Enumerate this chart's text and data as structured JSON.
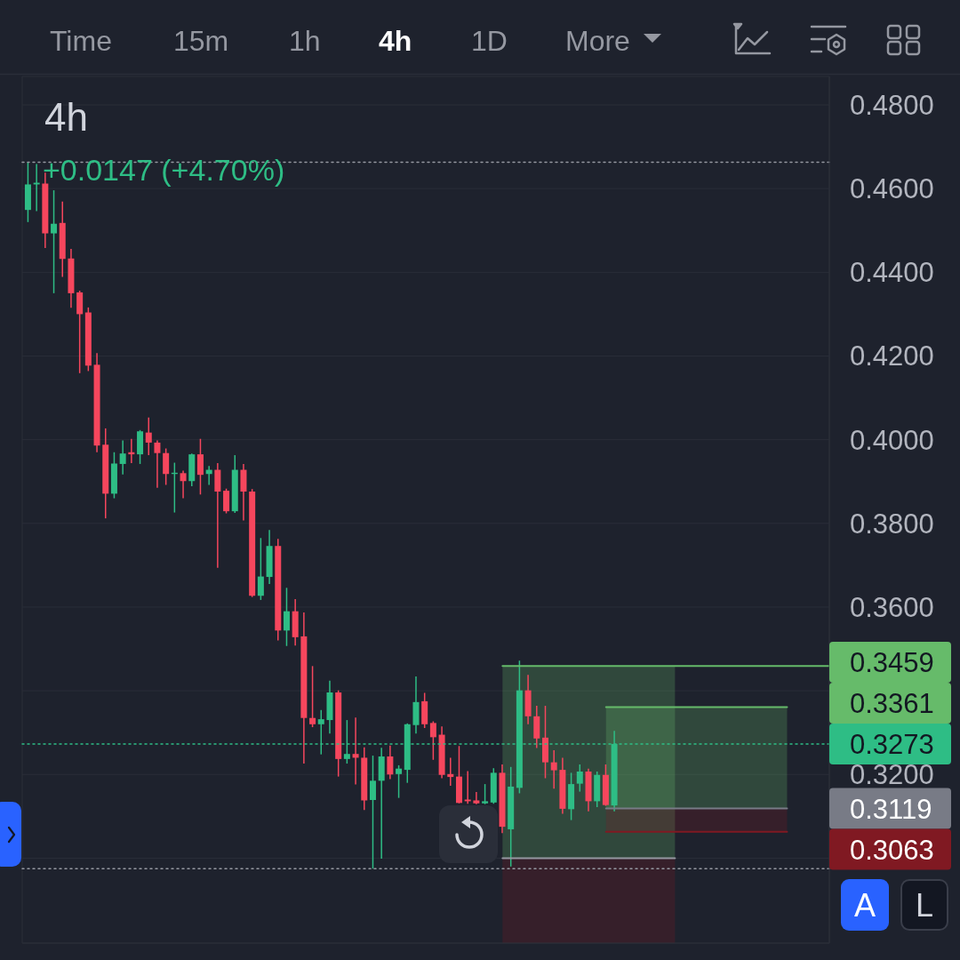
{
  "chart_data": {
    "type": "candlestick",
    "title": "4h",
    "categories": [
      null,
      null,
      null,
      null,
      null,
      null,
      null,
      null,
      null,
      null,
      null,
      null,
      null,
      null,
      null,
      null,
      null,
      null,
      null,
      null,
      null,
      null,
      null,
      null,
      null,
      null,
      null,
      null,
      null,
      null,
      null,
      null,
      null,
      null,
      null,
      null,
      null,
      null,
      null,
      null,
      null,
      null,
      null,
      null,
      null,
      null,
      null,
      null,
      null,
      null,
      null,
      null,
      null,
      null,
      null,
      null,
      null,
      null,
      null,
      null,
      null,
      null,
      null,
      null,
      null,
      null,
      null,
      null,
      null,
      null,
      null,
      null,
      null,
      null,
      null,
      null,
      null,
      null,
      null,
      null,
      null,
      null,
      null,
      null,
      null,
      null,
      null,
      null,
      null,
      null,
      null,
      null,
      null
    ],
    "ohlc": [
      [
        0.4549,
        0.4663,
        0.452,
        0.461
      ],
      [
        0.461,
        0.4659,
        0.4546,
        0.4614
      ],
      [
        0.4612,
        0.4638,
        0.4458,
        0.4493
      ],
      [
        0.4493,
        0.4596,
        0.435,
        0.4516
      ],
      [
        0.4518,
        0.4569,
        0.4389,
        0.4432
      ],
      [
        0.4433,
        0.4456,
        0.4315,
        0.435
      ],
      [
        0.4352,
        0.4356,
        0.4159,
        0.43
      ],
      [
        0.4304,
        0.4316,
        0.4164,
        0.4177
      ],
      [
        0.4179,
        0.4207,
        0.397,
        0.3986
      ],
      [
        0.3988,
        0.4027,
        0.3812,
        0.3871
      ],
      [
        0.3871,
        0.397,
        0.386,
        0.3943
      ],
      [
        0.3942,
        0.3998,
        0.3917,
        0.3967
      ],
      [
        0.397,
        0.4002,
        0.3944,
        0.3965
      ],
      [
        0.3965,
        0.4023,
        0.3942,
        0.402
      ],
      [
        0.4017,
        0.4053,
        0.3963,
        0.3993
      ],
      [
        0.3993,
        0.3998,
        0.3885,
        0.3968
      ],
      [
        0.3968,
        0.3979,
        0.3892,
        0.3918
      ],
      [
        0.3918,
        0.3945,
        0.3826,
        0.3921
      ],
      [
        0.392,
        0.3926,
        0.386,
        0.3901
      ],
      [
        0.3901,
        0.3967,
        0.3889,
        0.3965
      ],
      [
        0.3965,
        0.4002,
        0.3869,
        0.3916
      ],
      [
        0.3918,
        0.3937,
        0.3892,
        0.3928
      ],
      [
        0.3928,
        0.3944,
        0.3694,
        0.3876
      ],
      [
        0.3878,
        0.3883,
        0.3824,
        0.3829
      ],
      [
        0.3829,
        0.3963,
        0.3825,
        0.3928
      ],
      [
        0.3928,
        0.3942,
        0.3807,
        0.3876
      ],
      [
        0.3876,
        0.3882,
        0.3624,
        0.3627
      ],
      [
        0.3627,
        0.3765,
        0.3617,
        0.3673
      ],
      [
        0.3672,
        0.3784,
        0.3655,
        0.3746
      ],
      [
        0.3746,
        0.3763,
        0.352,
        0.3544
      ],
      [
        0.3544,
        0.3646,
        0.3507,
        0.359
      ],
      [
        0.359,
        0.3619,
        0.3508,
        0.3528
      ],
      [
        0.353,
        0.3587,
        0.3226,
        0.3335
      ],
      [
        0.3335,
        0.3459,
        0.3313,
        0.332
      ],
      [
        0.332,
        0.3354,
        0.3248,
        0.3332
      ],
      [
        0.333,
        0.3424,
        0.3298,
        0.3396
      ],
      [
        0.3396,
        0.3401,
        0.3195,
        0.3237
      ],
      [
        0.3237,
        0.333,
        0.3226,
        0.3249
      ],
      [
        0.3249,
        0.3336,
        0.3176,
        0.324
      ],
      [
        0.324,
        0.3265,
        0.3115,
        0.3138
      ],
      [
        0.3139,
        0.3245,
        0.2975,
        0.3185
      ],
      [
        0.3185,
        0.3264,
        0.2999,
        0.3243
      ],
      [
        0.3243,
        0.3269,
        0.3189,
        0.32
      ],
      [
        0.3201,
        0.3222,
        0.3144,
        0.3214
      ],
      [
        0.3211,
        0.3322,
        0.318,
        0.332
      ],
      [
        0.3318,
        0.3434,
        0.3298,
        0.3373
      ],
      [
        0.3375,
        0.3395,
        0.3311,
        0.332
      ],
      [
        0.3323,
        0.3327,
        0.3235,
        0.3289
      ],
      [
        0.3295,
        0.3315,
        0.3191,
        0.3199
      ],
      [
        0.3201,
        0.324,
        0.3173,
        0.3194
      ],
      [
        0.3195,
        0.3268,
        0.3131,
        0.3132
      ],
      [
        0.314,
        0.3208,
        0.313,
        0.3136
      ],
      [
        0.3138,
        0.3158,
        0.3129,
        0.3131
      ],
      [
        0.3131,
        0.3177,
        0.3129,
        0.3136
      ],
      [
        0.3133,
        0.3215,
        0.313,
        0.3204
      ],
      [
        0.3204,
        0.3224,
        0.306,
        0.3075
      ],
      [
        0.3069,
        0.3218,
        0.298,
        0.3171
      ],
      [
        0.3168,
        0.3472,
        0.3155,
        0.3401
      ],
      [
        0.3401,
        0.3438,
        0.332,
        0.3339
      ],
      [
        0.3339,
        0.3364,
        0.3263,
        0.3286
      ],
      [
        0.3288,
        0.3364,
        0.3191,
        0.3229
      ],
      [
        0.3229,
        0.3258,
        0.3166,
        0.321
      ],
      [
        0.3211,
        0.324,
        0.3106,
        0.3118
      ],
      [
        0.3117,
        0.3204,
        0.3091,
        0.3177
      ],
      [
        0.3178,
        0.3224,
        0.3159,
        0.3207
      ],
      [
        0.3207,
        0.3214,
        0.3112,
        0.3136
      ],
      [
        0.3136,
        0.3207,
        0.3122,
        0.3199
      ],
      [
        0.3199,
        0.3224,
        0.3125,
        0.3127
      ],
      [
        0.3126,
        0.3304,
        0.3112,
        0.3273
      ],
      null,
      null,
      null,
      null,
      null,
      null,
      null,
      null,
      null,
      null,
      null,
      null,
      null,
      null,
      null,
      null,
      null,
      null,
      null,
      null,
      null,
      null,
      null,
      null
    ],
    "colors": [
      "#2ebd85",
      "#2ebd85",
      "#f6465d",
      "#2ebd85",
      "#f6465d",
      "#f6465d",
      "#f6465d",
      "#f6465d",
      "#f6465d",
      "#f6465d",
      "#2ebd85",
      "#2ebd85",
      "#f6465d",
      "#2ebd85",
      "#f6465d",
      "#f6465d",
      "#f6465d",
      "#2ebd85",
      "#f6465d",
      "#2ebd85",
      "#f6465d",
      "#2ebd85",
      "#f6465d",
      "#f6465d",
      "#2ebd85",
      "#f6465d",
      "#f6465d",
      "#2ebd85",
      "#2ebd85",
      "#f6465d",
      "#2ebd85",
      "#f6465d",
      "#f6465d",
      "#f6465d",
      "#2ebd85",
      "#2ebd85",
      "#f6465d",
      "#2ebd85",
      "#f6465d",
      "#f6465d",
      "#2ebd85",
      "#2ebd85",
      "#f6465d",
      "#2ebd85",
      "#2ebd85",
      "#2ebd85",
      "#f6465d",
      "#f6465d",
      "#f6465d",
      "#f6465d",
      "#f6465d",
      "#f6465d",
      "#f6465d",
      "#2ebd85",
      "#2ebd85",
      "#f6465d",
      "#2ebd85",
      "#2ebd85",
      "#f6465d",
      "#f6465d",
      "#f6465d",
      "#f6465d",
      "#f6465d",
      "#2ebd85",
      "#2ebd85",
      "#f6465d",
      "#2ebd85",
      "#f6465d",
      "#2ebd85",
      null,
      null,
      null,
      null,
      null,
      null,
      null,
      null,
      null,
      null,
      null,
      null,
      null,
      null,
      null,
      null,
      null,
      null,
      null,
      null,
      null,
      null,
      null,
      null
    ],
    "ylim": [
      0.2797,
      0.4868
    ],
    "yticks": [
      {
        "value": 0.3,
        "label": null
      },
      {
        "value": 0.32,
        "label": "0.3200"
      },
      {
        "value": 0.34,
        "label": null
      },
      {
        "value": 0.36,
        "label": "0.3600"
      },
      {
        "value": 0.38,
        "label": "0.3800"
      },
      {
        "value": 0.4,
        "label": "0.4000"
      },
      {
        "value": 0.42,
        "label": "0.4200"
      },
      {
        "value": 0.44,
        "label": "0.4400"
      },
      {
        "value": 0.46,
        "label": "0.4600"
      },
      {
        "value": 0.48,
        "label": "0.4800"
      }
    ],
    "grid": true,
    "ref_lines": [
      {
        "axis": "y",
        "value": 0.4663,
        "color": "#9598a1",
        "line_style": "dotted"
      },
      {
        "axis": "y",
        "value": 0.2975,
        "color": "#9598a1",
        "line_style": "dotted"
      },
      {
        "axis": "y",
        "value": 0.3273,
        "label": "0.3273",
        "color": "#2ebd85",
        "line_style": "dotted"
      },
      {
        "axis": "y",
        "value": 0.3459,
        "label": "0.3459",
        "color": "#66bb6a"
      },
      {
        "axis": "y",
        "value": 0.3361,
        "label": "0.3361",
        "color": "#66bb6a"
      },
      {
        "axis": "y",
        "value": 0.3119,
        "label": "0.3119",
        "color": "#787b86"
      },
      {
        "axis": "y",
        "value": 0.3063,
        "label": "0.3063",
        "color": "#801922"
      },
      {
        "axis": "y",
        "value": 0.3,
        "color": "#9598a1"
      }
    ],
    "bands": [
      {
        "axis": "y",
        "from": 0.3,
        "to": 0.3459,
        "color": "#66bb6a"
      },
      {
        "axis": "y",
        "from": 0.2797,
        "to": 0.3,
        "color": "#801922"
      },
      {
        "axis": "y",
        "from": 0.3119,
        "to": 0.3361,
        "color": "#66bb6a"
      },
      {
        "axis": "y",
        "from": 0.3063,
        "to": 0.3119,
        "color": "#801922"
      }
    ],
    "annotations": [
      "Time",
      "15m",
      "1h",
      "4h",
      "1D",
      "More",
      "+0.0147 (+4.70%)",
      "A",
      "L"
    ]
  }
}
